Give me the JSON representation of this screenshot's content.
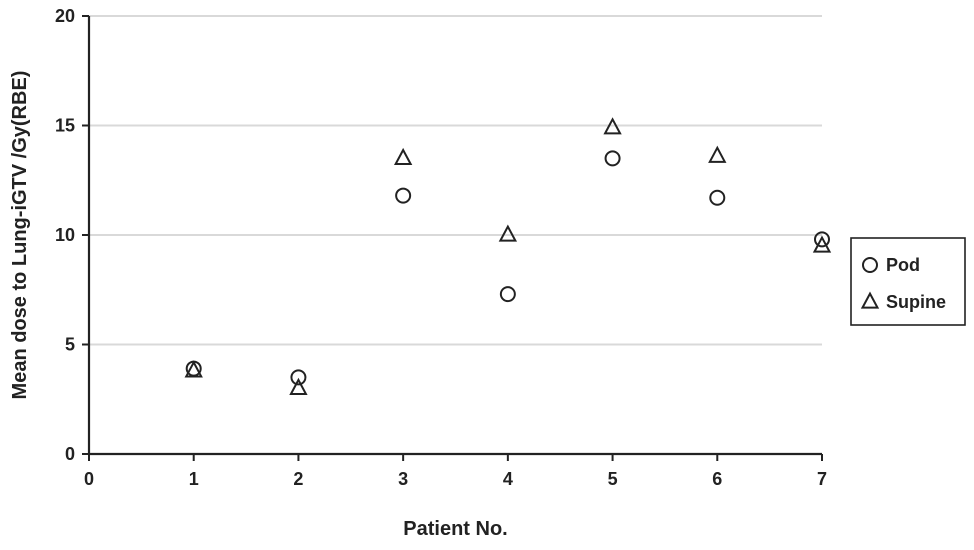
{
  "chart_data": {
    "type": "scatter",
    "xlabel": "Patient No.",
    "ylabel": "Mean dose  to Lung-iGTV /Gy(RBE)",
    "xlim": [
      0,
      7
    ],
    "ylim": [
      0,
      20
    ],
    "xticks": [
      0,
      1,
      2,
      3,
      4,
      5,
      6,
      7
    ],
    "yticks": [
      0,
      5,
      10,
      15,
      20
    ],
    "grid": "horizontal",
    "legend_position": "right",
    "x": [
      1,
      2,
      3,
      4,
      5,
      6,
      7
    ],
    "series": [
      {
        "name": "Pod",
        "marker": "circle",
        "values": [
          3.9,
          3.5,
          11.8,
          7.3,
          13.5,
          11.7,
          9.8
        ]
      },
      {
        "name": "Supine",
        "marker": "triangle",
        "values": [
          3.8,
          3.0,
          13.5,
          10.0,
          14.9,
          13.6,
          9.5
        ]
      }
    ]
  }
}
